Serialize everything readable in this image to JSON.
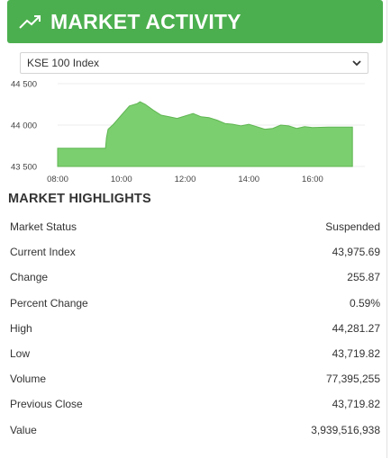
{
  "header": {
    "title": "MARKET ACTIVITY",
    "icon": "trending-up-icon",
    "bg_color": "#4caf4f"
  },
  "index_select": {
    "selected": "KSE 100 Index"
  },
  "chart_data": {
    "type": "area",
    "color": "#7ccf6f",
    "x_ticks": [
      "08:00",
      "10:00",
      "12:00",
      "14:00",
      "16:00"
    ],
    "y_ticks": [
      "44 500",
      "44 000",
      "43 500"
    ],
    "ylim": [
      43500,
      44500
    ],
    "xlim": [
      "08:00",
      "17:30"
    ],
    "series": [
      {
        "x": [
          "08:00",
          "09:30",
          "09:32",
          "09:35",
          "09:45",
          "10:00",
          "10:15",
          "10:30",
          "10:35",
          "10:45",
          "11:00",
          "11:15",
          "11:30",
          "11:45",
          "12:00",
          "12:15",
          "12:30",
          "12:45",
          "13:00",
          "13:15",
          "13:30",
          "13:45",
          "14:00",
          "14:15",
          "14:30",
          "14:45",
          "15:00",
          "15:15",
          "15:30",
          "15:45",
          "16:00",
          "16:30",
          "17:00",
          "17:15"
        ],
        "y": [
          43719.82,
          43719.82,
          43850,
          43950,
          44010,
          44120,
          44230,
          44260,
          44281.27,
          44250,
          44180,
          44120,
          44100,
          44080,
          44110,
          44140,
          44100,
          44090,
          44060,
          44020,
          44010,
          43990,
          44010,
          43980,
          43950,
          43960,
          44000,
          43990,
          43960,
          43980,
          43970,
          43975,
          43975.69,
          43975.69
        ]
      }
    ]
  },
  "highlights": {
    "title": "MARKET HIGHLIGHTS",
    "rows": [
      {
        "label": "Market Status",
        "value": "Suspended"
      },
      {
        "label": "Current Index",
        "value": "43,975.69"
      },
      {
        "label": "Change",
        "value": "255.87"
      },
      {
        "label": "Percent Change",
        "value": "0.59%"
      },
      {
        "label": "High",
        "value": "44,281.27"
      },
      {
        "label": "Low",
        "value": "43,719.82"
      },
      {
        "label": "Volume",
        "value": "77,395,255"
      },
      {
        "label": "Previous Close",
        "value": "43,719.82"
      },
      {
        "label": "Value",
        "value": "3,939,516,938"
      }
    ]
  }
}
